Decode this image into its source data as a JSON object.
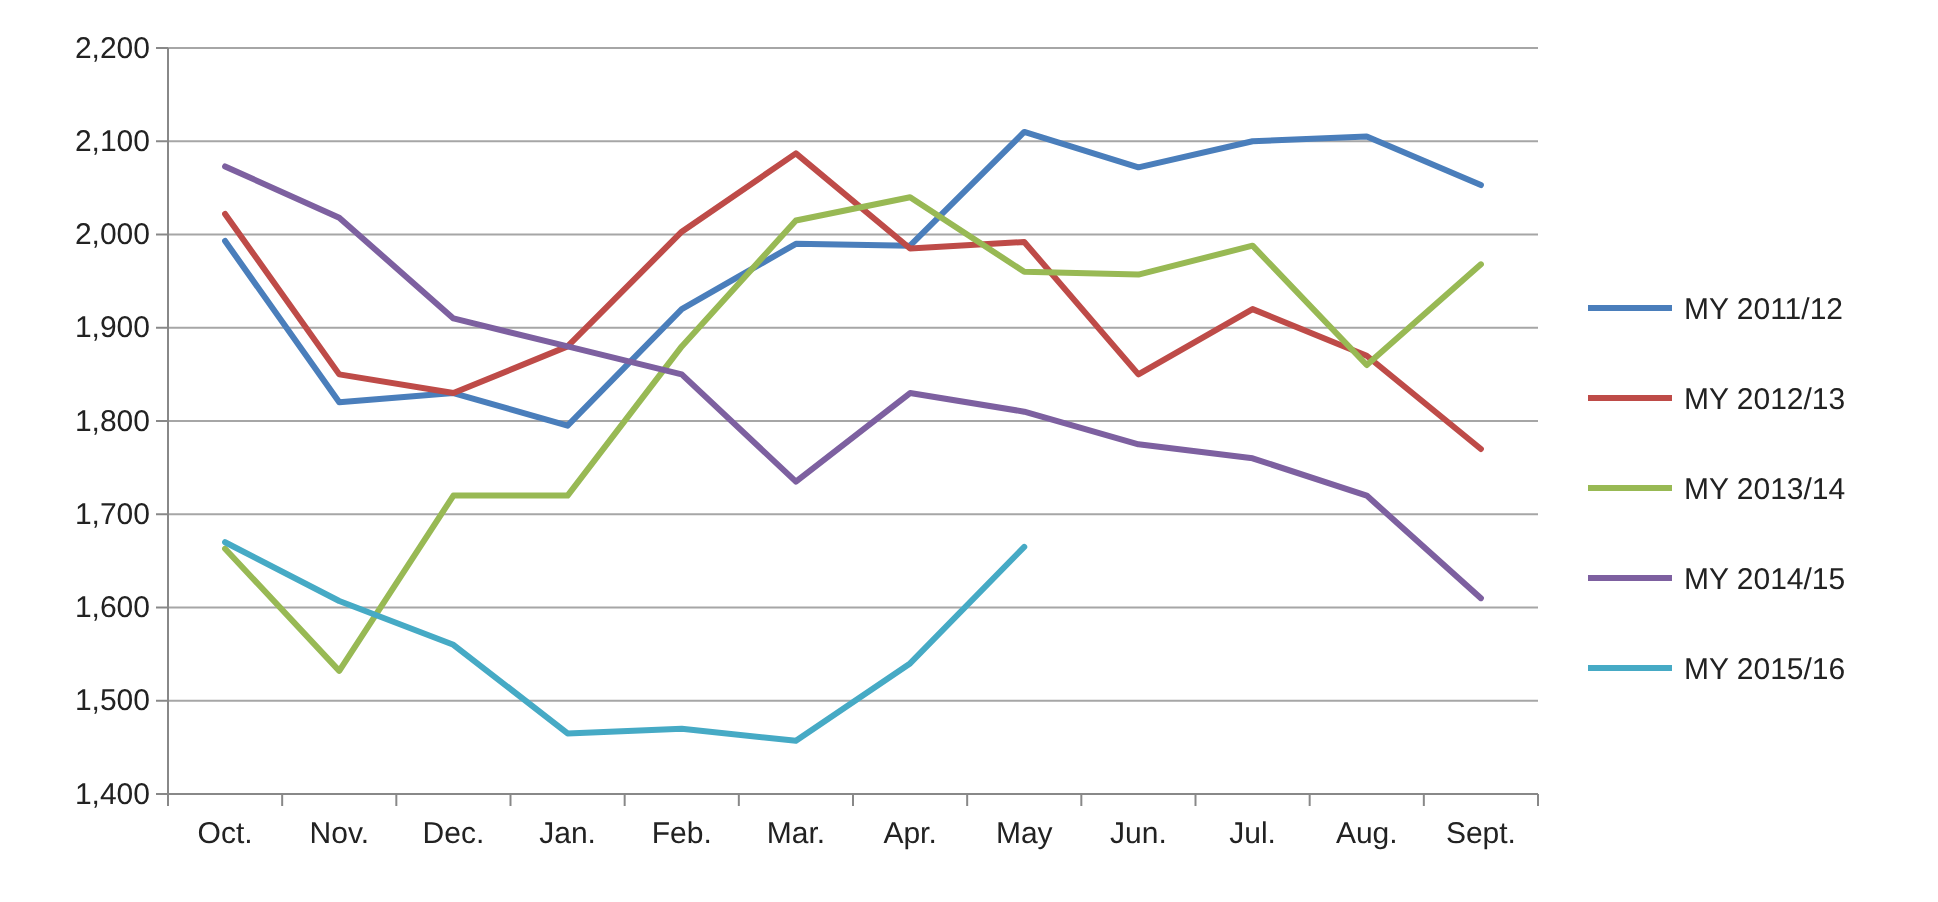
{
  "chart_data": {
    "type": "line",
    "categories": [
      "Oct.",
      "Nov.",
      "Dec.",
      "Jan.",
      "Feb.",
      "Mar.",
      "Apr.",
      "May",
      "Jun.",
      "Jul.",
      "Aug.",
      "Sept."
    ],
    "ylim": [
      1400,
      2200
    ],
    "yticks": [
      {
        "value": 1400,
        "label": "1,400"
      },
      {
        "value": 1500,
        "label": "1,500"
      },
      {
        "value": 1600,
        "label": "1,600"
      },
      {
        "value": 1700,
        "label": "1,700"
      },
      {
        "value": 1800,
        "label": "1,800"
      },
      {
        "value": 1900,
        "label": "1,900"
      },
      {
        "value": 2000,
        "label": "2,000"
      },
      {
        "value": 2100,
        "label": "2,100"
      },
      {
        "value": 2200,
        "label": "2,200"
      }
    ],
    "grid": "y",
    "legend": "right",
    "marker": "none",
    "line_style": "solid",
    "series": [
      {
        "name": "MY 2011/12",
        "color": "#4a7ebb",
        "values": [
          1993,
          1820,
          1830,
          1795,
          1920,
          1990,
          1988,
          2110,
          2072,
          2100,
          2105,
          2053
        ]
      },
      {
        "name": "MY 2012/13",
        "color": "#be4b48",
        "values": [
          2022,
          1850,
          1830,
          1880,
          2003,
          2087,
          1985,
          1992,
          1850,
          1920,
          1870,
          1770
        ]
      },
      {
        "name": "MY 2013/14",
        "color": "#98b954",
        "values": [
          1663,
          1532,
          1720,
          1720,
          1880,
          2015,
          2040,
          1960,
          1957,
          1988,
          1860,
          1968
        ]
      },
      {
        "name": "MY 2014/15",
        "color": "#7d60a0",
        "values": [
          2073,
          2018,
          1910,
          1880,
          1850,
          1735,
          1830,
          1810,
          1775,
          1760,
          1720,
          1610
        ]
      },
      {
        "name": "MY 2015/16",
        "color": "#46aac5",
        "values": [
          1670,
          1607,
          1560,
          1465,
          1470,
          1457,
          1540,
          1665,
          null,
          null,
          null,
          null
        ]
      }
    ]
  }
}
